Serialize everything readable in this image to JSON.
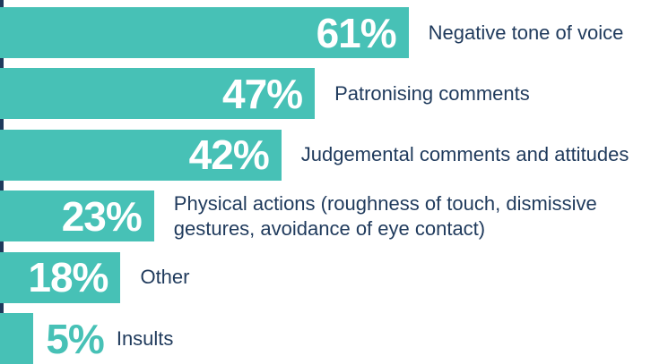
{
  "chart_data": {
    "type": "bar",
    "orientation": "horizontal",
    "categories": [
      "Negative tone of voice",
      "Patronising comments",
      "Judgemental comments and attitudes",
      "Physical actions (roughness of touch, dismissive gestures, avoidance of eye contact)",
      "Other",
      "Insults"
    ],
    "values": [
      61,
      47,
      42,
      23,
      18,
      5
    ],
    "value_labels": [
      "61%",
      "47%",
      "42%",
      "23%",
      "18%",
      "5%"
    ],
    "color": "#47c1b6"
  }
}
